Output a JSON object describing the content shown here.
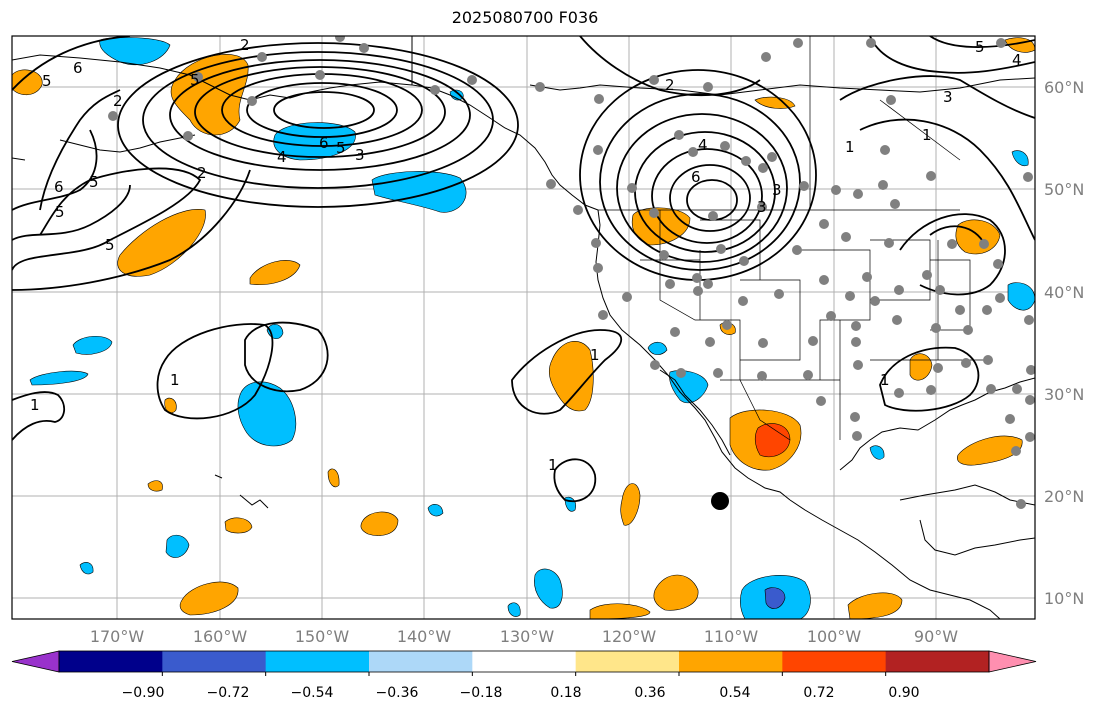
{
  "title": "2025080700 F036",
  "map": {
    "lon_labels": [
      "170°W",
      "160°W",
      "150°W",
      "140°W",
      "130°W",
      "120°W",
      "110°W",
      "100°W",
      "90°W"
    ],
    "lat_labels": [
      "60°N",
      "50°N",
      "40°N",
      "30°N",
      "20°N",
      "10°N"
    ],
    "contour_labels": [
      "2",
      "6",
      "5",
      "2",
      "5",
      "2",
      "5",
      "6",
      "4",
      "5",
      "3",
      "6",
      "5",
      "5",
      "1",
      "1",
      "1",
      "1",
      "1",
      "2",
      "6",
      "4",
      "3",
      "3",
      "1",
      "3",
      "1",
      "5",
      "4"
    ],
    "station_color": "#808080",
    "marker_color": "#000000",
    "grid_color": "#b0b0b0"
  },
  "colorbar": {
    "tick_labels": [
      "−0.90",
      "−0.72",
      "−0.54",
      "−0.36",
      "−0.18",
      "0.18",
      "0.36",
      "0.54",
      "0.72",
      "0.90"
    ],
    "colors": [
      "#9932cc",
      "#00008b",
      "#3a5bcd",
      "#00bfff",
      "#add8f8",
      "#ffffff",
      "#ffe68a",
      "#ffa500",
      "#ff4500",
      "#b22222",
      "#ff8fb0"
    ]
  }
}
